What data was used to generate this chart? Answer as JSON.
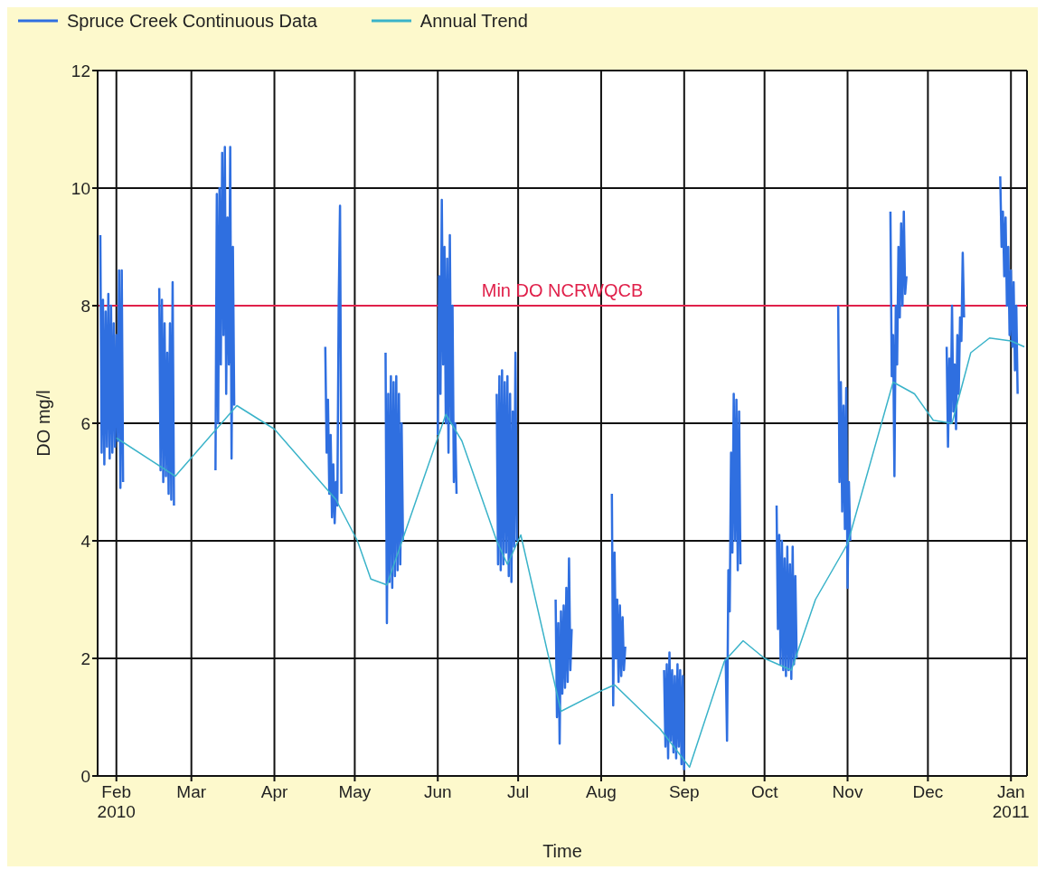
{
  "chart_data": {
    "type": "line",
    "xlabel": "Time",
    "ylabel": "DO mg/l",
    "legend": "top left",
    "grid": true,
    "xlim": [
      "2010-01-25",
      "2011-01-07"
    ],
    "xticks": [
      {
        "value": "2010-02-01",
        "label": "Feb\n2010"
      },
      {
        "value": "2010-03-01",
        "label": "Mar"
      },
      {
        "value": "2010-04-01",
        "label": "Apr"
      },
      {
        "value": "2010-05-01",
        "label": "May"
      },
      {
        "value": "2010-06-01",
        "label": "Jun"
      },
      {
        "value": "2010-07-01",
        "label": "Jul"
      },
      {
        "value": "2010-08-01",
        "label": "Aug"
      },
      {
        "value": "2010-09-01",
        "label": "Sep"
      },
      {
        "value": "2010-10-01",
        "label": "Oct"
      },
      {
        "value": "2010-11-01",
        "label": "Nov"
      },
      {
        "value": "2010-12-01",
        "label": "Dec"
      },
      {
        "value": "2011-01-01",
        "label": "Jan\n2011"
      }
    ],
    "ylim": [
      0,
      12
    ],
    "yticks": [
      0,
      2,
      4,
      6,
      8,
      10,
      12
    ],
    "ref_lines": [
      {
        "axis": "y",
        "value": 8,
        "label": "Min DO NCRWQCB",
        "color": "#e0204a"
      }
    ],
    "series": [
      {
        "name": "Spruce Creek Continuous Data",
        "color": "#2f6fe0",
        "x": [
          "2010-01-26",
          "2010-01-26T12:00",
          "2010-01-27",
          "2010-01-27T12:00",
          "2010-01-28",
          "2010-01-28T12:00",
          "2010-01-29",
          "2010-01-29T12:00",
          "2010-01-30",
          "2010-01-30T12:00",
          "2010-01-31",
          "2010-01-31T12:00",
          "2010-02-01",
          "2010-02-01T12:00",
          "2010-02-02",
          "2010-02-02T12:00",
          "2010-02-03",
          "2010-02-03T12:00",
          "2010-02-10",
          "2010-02-17",
          "2010-02-17T12:00",
          "2010-02-18",
          "2010-02-18T12:00",
          "2010-02-19",
          "2010-02-19T12:00",
          "2010-02-20",
          "2010-02-20T12:00",
          "2010-02-21",
          "2010-02-21T12:00",
          "2010-02-22",
          "2010-02-22T12:00",
          "2010-03-01",
          "2010-03-10",
          "2010-03-10T12:00",
          "2010-03-11",
          "2010-03-11T12:00",
          "2010-03-12",
          "2010-03-12T12:00",
          "2010-03-13",
          "2010-03-13T12:00",
          "2010-03-14",
          "2010-03-14T12:00",
          "2010-03-15",
          "2010-03-15T12:00",
          "2010-03-16",
          "2010-03-16T12:00",
          "2010-03-17",
          "2010-04-01",
          "2010-04-20",
          "2010-04-20T12:00",
          "2010-04-21",
          "2010-04-21T12:00",
          "2010-04-22",
          "2010-04-22T12:00",
          "2010-04-23",
          "2010-04-23T12:00",
          "2010-04-24",
          "2010-04-24T12:00",
          "2010-04-25",
          "2010-04-25T12:00",
          "2010-04-26",
          "2010-05-05",
          "2010-05-12T12:00",
          "2010-05-13",
          "2010-05-13T12:00",
          "2010-05-14",
          "2010-05-14T12:00",
          "2010-05-15",
          "2010-05-15T12:00",
          "2010-05-16",
          "2010-05-16T12:00",
          "2010-05-17",
          "2010-05-17T12:00",
          "2010-05-18",
          "2010-05-18T12:00",
          "2010-05-19",
          "2010-05-25",
          "2010-06-01",
          "2010-06-01T12:00",
          "2010-06-02",
          "2010-06-02T12:00",
          "2010-06-03",
          "2010-06-03T12:00",
          "2010-06-04",
          "2010-06-04T12:00",
          "2010-06-05",
          "2010-06-05T12:00",
          "2010-06-06",
          "2010-06-06T12:00",
          "2010-06-07",
          "2010-06-07T12:00",
          "2010-06-08",
          "2010-06-15",
          "2010-06-23",
          "2010-06-23T12:00",
          "2010-06-24",
          "2010-06-24T12:00",
          "2010-06-25",
          "2010-06-25T12:00",
          "2010-06-26",
          "2010-06-26T12:00",
          "2010-06-27",
          "2010-06-27T12:00",
          "2010-06-28",
          "2010-06-28T12:00",
          "2010-06-29",
          "2010-06-29T12:00",
          "2010-06-30",
          "2010-06-30T12:00",
          "2010-07-08",
          "2010-07-15",
          "2010-07-15T12:00",
          "2010-07-16",
          "2010-07-16T12:00",
          "2010-07-17",
          "2010-07-17T12:00",
          "2010-07-18",
          "2010-07-18T12:00",
          "2010-07-19",
          "2010-07-19T12:00",
          "2010-07-20",
          "2010-07-20T12:00",
          "2010-07-21",
          "2010-07-28",
          "2010-08-05",
          "2010-08-05T12:00",
          "2010-08-06",
          "2010-08-06T12:00",
          "2010-08-07",
          "2010-08-07T12:00",
          "2010-08-08",
          "2010-08-08T12:00",
          "2010-08-09",
          "2010-08-09T12:00",
          "2010-08-10",
          "2010-08-17",
          "2010-08-24T12:00",
          "2010-08-25",
          "2010-08-25T12:00",
          "2010-08-26",
          "2010-08-26T12:00",
          "2010-08-27",
          "2010-08-27T12:00",
          "2010-08-28",
          "2010-08-28T12:00",
          "2010-08-29",
          "2010-08-29T12:00",
          "2010-08-30",
          "2010-08-30T12:00",
          "2010-08-31",
          "2010-08-31T12:00",
          "2010-09-01",
          "2010-09-08",
          "2010-09-16T12:00",
          "2010-09-17",
          "2010-09-17T12:00",
          "2010-09-18",
          "2010-09-18T12:00",
          "2010-09-19",
          "2010-09-19T12:00",
          "2010-09-20",
          "2010-09-20T12:00",
          "2010-09-21",
          "2010-09-21T12:00",
          "2010-09-22",
          "2010-09-29",
          "2010-10-05T12:00",
          "2010-10-06",
          "2010-10-06T12:00",
          "2010-10-07",
          "2010-10-07T12:00",
          "2010-10-08",
          "2010-10-08T12:00",
          "2010-10-09",
          "2010-10-09T12:00",
          "2010-10-10",
          "2010-10-10T12:00",
          "2010-10-11",
          "2010-10-11T12:00",
          "2010-10-12",
          "2010-10-12T12:00",
          "2010-10-13",
          "2010-10-20",
          "2010-10-28T12:00",
          "2010-10-29",
          "2010-10-29T12:00",
          "2010-10-30",
          "2010-10-30T12:00",
          "2010-10-31",
          "2010-10-31T12:00",
          "2010-11-01",
          "2010-11-01T12:00",
          "2010-11-02",
          "2010-11-10",
          "2010-11-17",
          "2010-11-17T12:00",
          "2010-11-18",
          "2010-11-18T12:00",
          "2010-11-19",
          "2010-11-19T12:00",
          "2010-11-20",
          "2010-11-20T12:00",
          "2010-11-21",
          "2010-11-21T12:00",
          "2010-11-22",
          "2010-11-22T12:00",
          "2010-11-23",
          "2010-12-01",
          "2010-12-08",
          "2010-12-08T12:00",
          "2010-12-09",
          "2010-12-09T12:00",
          "2010-12-10",
          "2010-12-10T12:00",
          "2010-12-11",
          "2010-12-11T12:00",
          "2010-12-12",
          "2010-12-12T12:00",
          "2010-12-13",
          "2010-12-13T12:00",
          "2010-12-14",
          "2010-12-14T12:00",
          "2010-12-21",
          "2010-12-28",
          "2010-12-28T12:00",
          "2010-12-29",
          "2010-12-29T12:00",
          "2010-12-30",
          "2010-12-30T12:00",
          "2010-12-31",
          "2010-12-31T12:00",
          "2011-01-01",
          "2011-01-01T12:00",
          "2011-01-02",
          "2011-01-02T12:00",
          "2011-01-03",
          "2011-01-03T12:00"
        ],
        "values": [
          9.2,
          5.5,
          8.1,
          5.3,
          7.9,
          5.6,
          8.2,
          5.4,
          8.0,
          5.5,
          7.7,
          5.6,
          7.5,
          5.7,
          8.6,
          4.9,
          8.6,
          5.0,
          null,
          8.3,
          5.2,
          8.1,
          5.0,
          7.7,
          5.1,
          7.2,
          4.8,
          7.7,
          4.7,
          8.4,
          4.6,
          null,
          5.2,
          9.9,
          6.0,
          10.0,
          7.0,
          10.6,
          7.5,
          10.7,
          6.5,
          9.5,
          7.0,
          10.7,
          5.4,
          9.0,
          6.3,
          null,
          7.3,
          5.5,
          6.4,
          4.8,
          5.8,
          4.4,
          5.3,
          4.3,
          5.0,
          4.6,
          8.0,
          9.7,
          4.8,
          null,
          7.2,
          2.6,
          6.5,
          3.3,
          6.8,
          3.2,
          6.7,
          3.4,
          6.8,
          3.5,
          6.5,
          3.6,
          6.0,
          4.0,
          null,
          5.8,
          8.5,
          6.5,
          9.8,
          7.0,
          9.0,
          6.0,
          8.8,
          5.5,
          9.2,
          6.0,
          8.0,
          5.0,
          6.0,
          4.8,
          null,
          6.5,
          3.6,
          6.8,
          3.5,
          6.9,
          3.6,
          6.7,
          3.8,
          6.8,
          3.4,
          6.5,
          3.3,
          6.2,
          3.9,
          7.2,
          4.0,
          null,
          3.0,
          1.0,
          2.6,
          0.55,
          2.8,
          1.4,
          2.9,
          1.5,
          3.2,
          1.6,
          3.7,
          1.8,
          2.5,
          null,
          4.8,
          1.2,
          3.8,
          2.0,
          3.0,
          1.6,
          2.9,
          1.7,
          2.7,
          1.8,
          2.2,
          null,
          1.8,
          0.5,
          1.9,
          0.3,
          2.1,
          0.6,
          1.8,
          0.4,
          1.7,
          0.3,
          1.9,
          0.5,
          1.8,
          0.2,
          1.7,
          0.1,
          null,
          2.0,
          0.6,
          3.5,
          2.8,
          5.5,
          3.8,
          6.5,
          4.0,
          6.4,
          3.5,
          6.2,
          3.6,
          null,
          4.6,
          2.5,
          4.1,
          1.9,
          4.0,
          1.8,
          3.7,
          1.7,
          3.9,
          1.8,
          3.6,
          1.65,
          3.9,
          1.9,
          3.4,
          2.0,
          null,
          8.0,
          5.0,
          6.7,
          4.5,
          6.3,
          4.2,
          6.6,
          3.2,
          5.0,
          4.0,
          null,
          9.6,
          6.8,
          7.5,
          5.1,
          8.0,
          7.0,
          9.0,
          7.8,
          9.4,
          8.0,
          9.6,
          8.2,
          8.5,
          null,
          7.3,
          5.6,
          7.1,
          6.0,
          8.0,
          6.2,
          7.0,
          5.9,
          7.5,
          6.5,
          7.8,
          7.4,
          8.9,
          7.8,
          null,
          10.2,
          9.0,
          9.6,
          8.5,
          9.5,
          8.0,
          9.0,
          7.5,
          8.6,
          7.3,
          8.4,
          6.9,
          8.0,
          6.5
        ]
      },
      {
        "name": "Annual Trend",
        "color": "#3ab3c9",
        "x": [
          "2010-02-01",
          "2010-02-23",
          "2010-03-18",
          "2010-04-01",
          "2010-04-24",
          "2010-05-02",
          "2010-05-07",
          "2010-05-13",
          "2010-06-04",
          "2010-06-10",
          "2010-06-23",
          "2010-06-27",
          "2010-07-02",
          "2010-07-17",
          "2010-08-02",
          "2010-08-06",
          "2010-08-23",
          "2010-09-03",
          "2010-09-16",
          "2010-09-23",
          "2010-10-01",
          "2010-10-11",
          "2010-10-20",
          "2010-11-01",
          "2010-11-18",
          "2010-11-26",
          "2010-12-03",
          "2010-12-10",
          "2010-12-17",
          "2010-12-24",
          "2011-01-01",
          "2011-01-06"
        ],
        "values": [
          5.75,
          5.1,
          6.3,
          5.9,
          4.7,
          4.0,
          3.35,
          3.25,
          6.15,
          5.7,
          4.0,
          3.6,
          4.1,
          1.1,
          1.47,
          1.55,
          0.8,
          0.15,
          1.95,
          2.3,
          2.0,
          1.8,
          3.0,
          3.95,
          6.7,
          6.5,
          6.05,
          6.0,
          7.2,
          7.45,
          7.4,
          7.3
        ]
      }
    ]
  }
}
